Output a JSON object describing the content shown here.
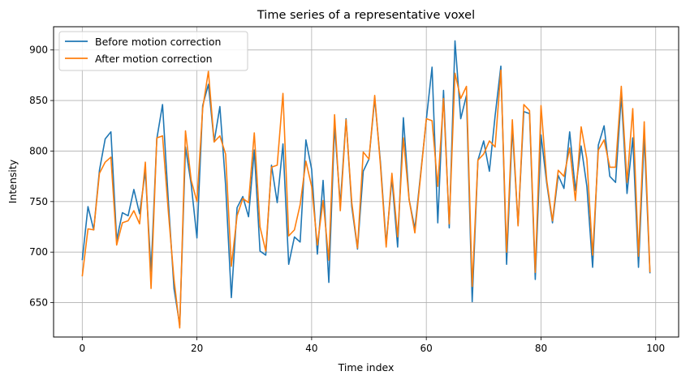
{
  "chart_data": {
    "type": "line",
    "title": "Time series of a representative voxel",
    "xlabel": "Time index",
    "ylabel": "Intensity",
    "xlim": [
      -5,
      104
    ],
    "ylim": [
      616,
      923
    ],
    "xticks": [
      0,
      20,
      40,
      60,
      80,
      100
    ],
    "yticks": [
      650,
      700,
      750,
      800,
      850,
      900
    ],
    "grid": true,
    "legend_position": "upper-left",
    "x": [
      0,
      1,
      2,
      3,
      4,
      5,
      6,
      7,
      8,
      9,
      10,
      11,
      12,
      13,
      14,
      15,
      16,
      17,
      18,
      19,
      20,
      21,
      22,
      23,
      24,
      25,
      26,
      27,
      28,
      29,
      30,
      31,
      32,
      33,
      34,
      35,
      36,
      37,
      38,
      39,
      40,
      41,
      42,
      43,
      44,
      45,
      46,
      47,
      48,
      49,
      50,
      51,
      52,
      53,
      54,
      55,
      56,
      57,
      58,
      59,
      60,
      61,
      62,
      63,
      64,
      65,
      66,
      67,
      68,
      69,
      70,
      71,
      72,
      73,
      74,
      75,
      76,
      77,
      78,
      79,
      80,
      81,
      82,
      83,
      84,
      85,
      86,
      87,
      88,
      89,
      90,
      91,
      92,
      93,
      94,
      95,
      96,
      97,
      98,
      99
    ],
    "series": [
      {
        "name": "Before motion correction",
        "color": "#1f77b4",
        "values": [
          692,
          745,
          722,
          781,
          812,
          819,
          712,
          739,
          736,
          762,
          738,
          780,
          681,
          812,
          846,
          752,
          664,
          628,
          804,
          767,
          714,
          845,
          866,
          809,
          844,
          766,
          655,
          744,
          755,
          735,
          801,
          701,
          697,
          786,
          749,
          807,
          688,
          715,
          710,
          811,
          782,
          698,
          771,
          670,
          825,
          747,
          832,
          745,
          703,
          780,
          792,
          852,
          789,
          708,
          773,
          705,
          833,
          752,
          723,
          777,
          831,
          883,
          729,
          860,
          724,
          909,
          832,
          855,
          651,
          791,
          810,
          780,
          835,
          884,
          688,
          823,
          727,
          839,
          837,
          673,
          816,
          768,
          729,
          776,
          763,
          819,
          761,
          805,
          765,
          685,
          806,
          825,
          775,
          769,
          855,
          758,
          813,
          685,
          815,
          679
        ]
      },
      {
        "name": "After motion correction",
        "color": "#ff7f0e",
        "values": [
          676,
          723,
          722,
          778,
          789,
          794,
          707,
          729,
          731,
          741,
          728,
          789,
          664,
          813,
          815,
          741,
          673,
          625,
          820,
          771,
          750,
          842,
          879,
          809,
          815,
          797,
          686,
          736,
          753,
          749,
          818,
          725,
          701,
          784,
          786,
          857,
          716,
          722,
          747,
          790,
          765,
          707,
          751,
          692,
          836,
          741,
          831,
          749,
          704,
          799,
          792,
          855,
          786,
          705,
          778,
          715,
          813,
          752,
          719,
          775,
          832,
          830,
          765,
          852,
          728,
          877,
          852,
          864,
          666,
          791,
          797,
          810,
          804,
          880,
          700,
          831,
          726,
          846,
          840,
          680,
          845,
          771,
          731,
          781,
          775,
          803,
          751,
          824,
          792,
          697,
          801,
          811,
          784,
          784,
          864,
          769,
          842,
          696,
          829,
          680
        ]
      }
    ]
  }
}
